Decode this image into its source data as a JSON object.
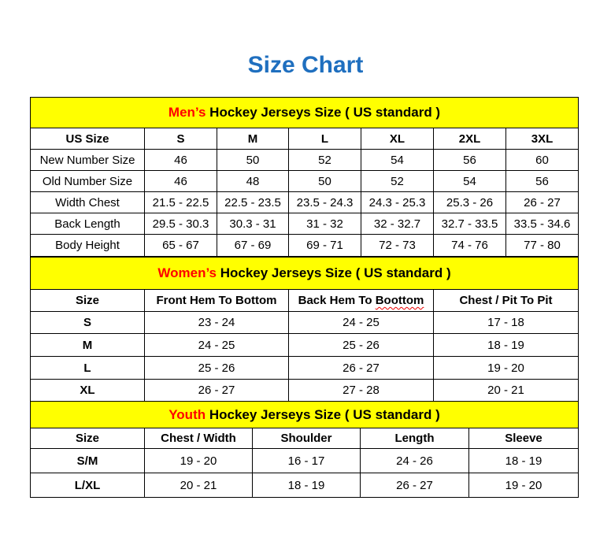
{
  "title": "Size Chart",
  "mens": {
    "header_prefix": "Men’s",
    "header_rest": " Hockey Jerseys Size ( US standard )",
    "columns": [
      "US Size",
      "S",
      "M",
      "L",
      "XL",
      "2XL",
      "3XL"
    ],
    "rows": [
      [
        "New Number Size",
        "46",
        "50",
        "52",
        "54",
        "56",
        "60"
      ],
      [
        "Old Number Size",
        "46",
        "48",
        "50",
        "52",
        "54",
        "56"
      ],
      [
        "Width Chest",
        "21.5 - 22.5",
        "22.5 - 23.5",
        "23.5 - 24.3",
        "24.3 - 25.3",
        "25.3 - 26",
        "26 - 27"
      ],
      [
        "Back Length",
        "29.5 - 30.3",
        "30.3 - 31",
        "31 - 32",
        "32 - 32.7",
        "32.7 - 33.5",
        "33.5 - 34.6"
      ],
      [
        "Body Height",
        "65 - 67",
        "67 - 69",
        "69 - 71",
        "72 - 73",
        "74 - 76",
        "77 - 80"
      ]
    ]
  },
  "womens": {
    "header_prefix": "Women’s",
    "header_rest": " Hockey Jerseys Size ( US standard )",
    "columns": [
      "Size",
      "Front Hem To Bottom",
      "Back Hem To Boottom",
      "Chest / Pit To Pit"
    ],
    "rows": [
      [
        "S",
        "23 - 24",
        "24 - 25",
        "17 - 18"
      ],
      [
        "M",
        "24 - 25",
        "25 - 26",
        "18 - 19"
      ],
      [
        "L",
        "25 - 26",
        "26 - 27",
        "19 - 20"
      ],
      [
        "XL",
        "26 - 27",
        "27 - 28",
        "20 - 21"
      ]
    ]
  },
  "youth": {
    "header_prefix": "Youth",
    "header_rest": " Hockey Jerseys Size ( US standard )",
    "columns": [
      "Size",
      "Chest / Width",
      "Shoulder",
      "Length",
      "Sleeve"
    ],
    "rows": [
      [
        "S/M",
        "19 - 20",
        "16 - 17",
        "24 - 26",
        "18 - 19"
      ],
      [
        "L/XL",
        "20 - 21",
        "18 - 19",
        "26 - 27",
        "19 - 20"
      ]
    ]
  },
  "colors": {
    "title": "#1f6fbf",
    "header_bg": "#ffff00",
    "header_accent": "#ff0000"
  }
}
